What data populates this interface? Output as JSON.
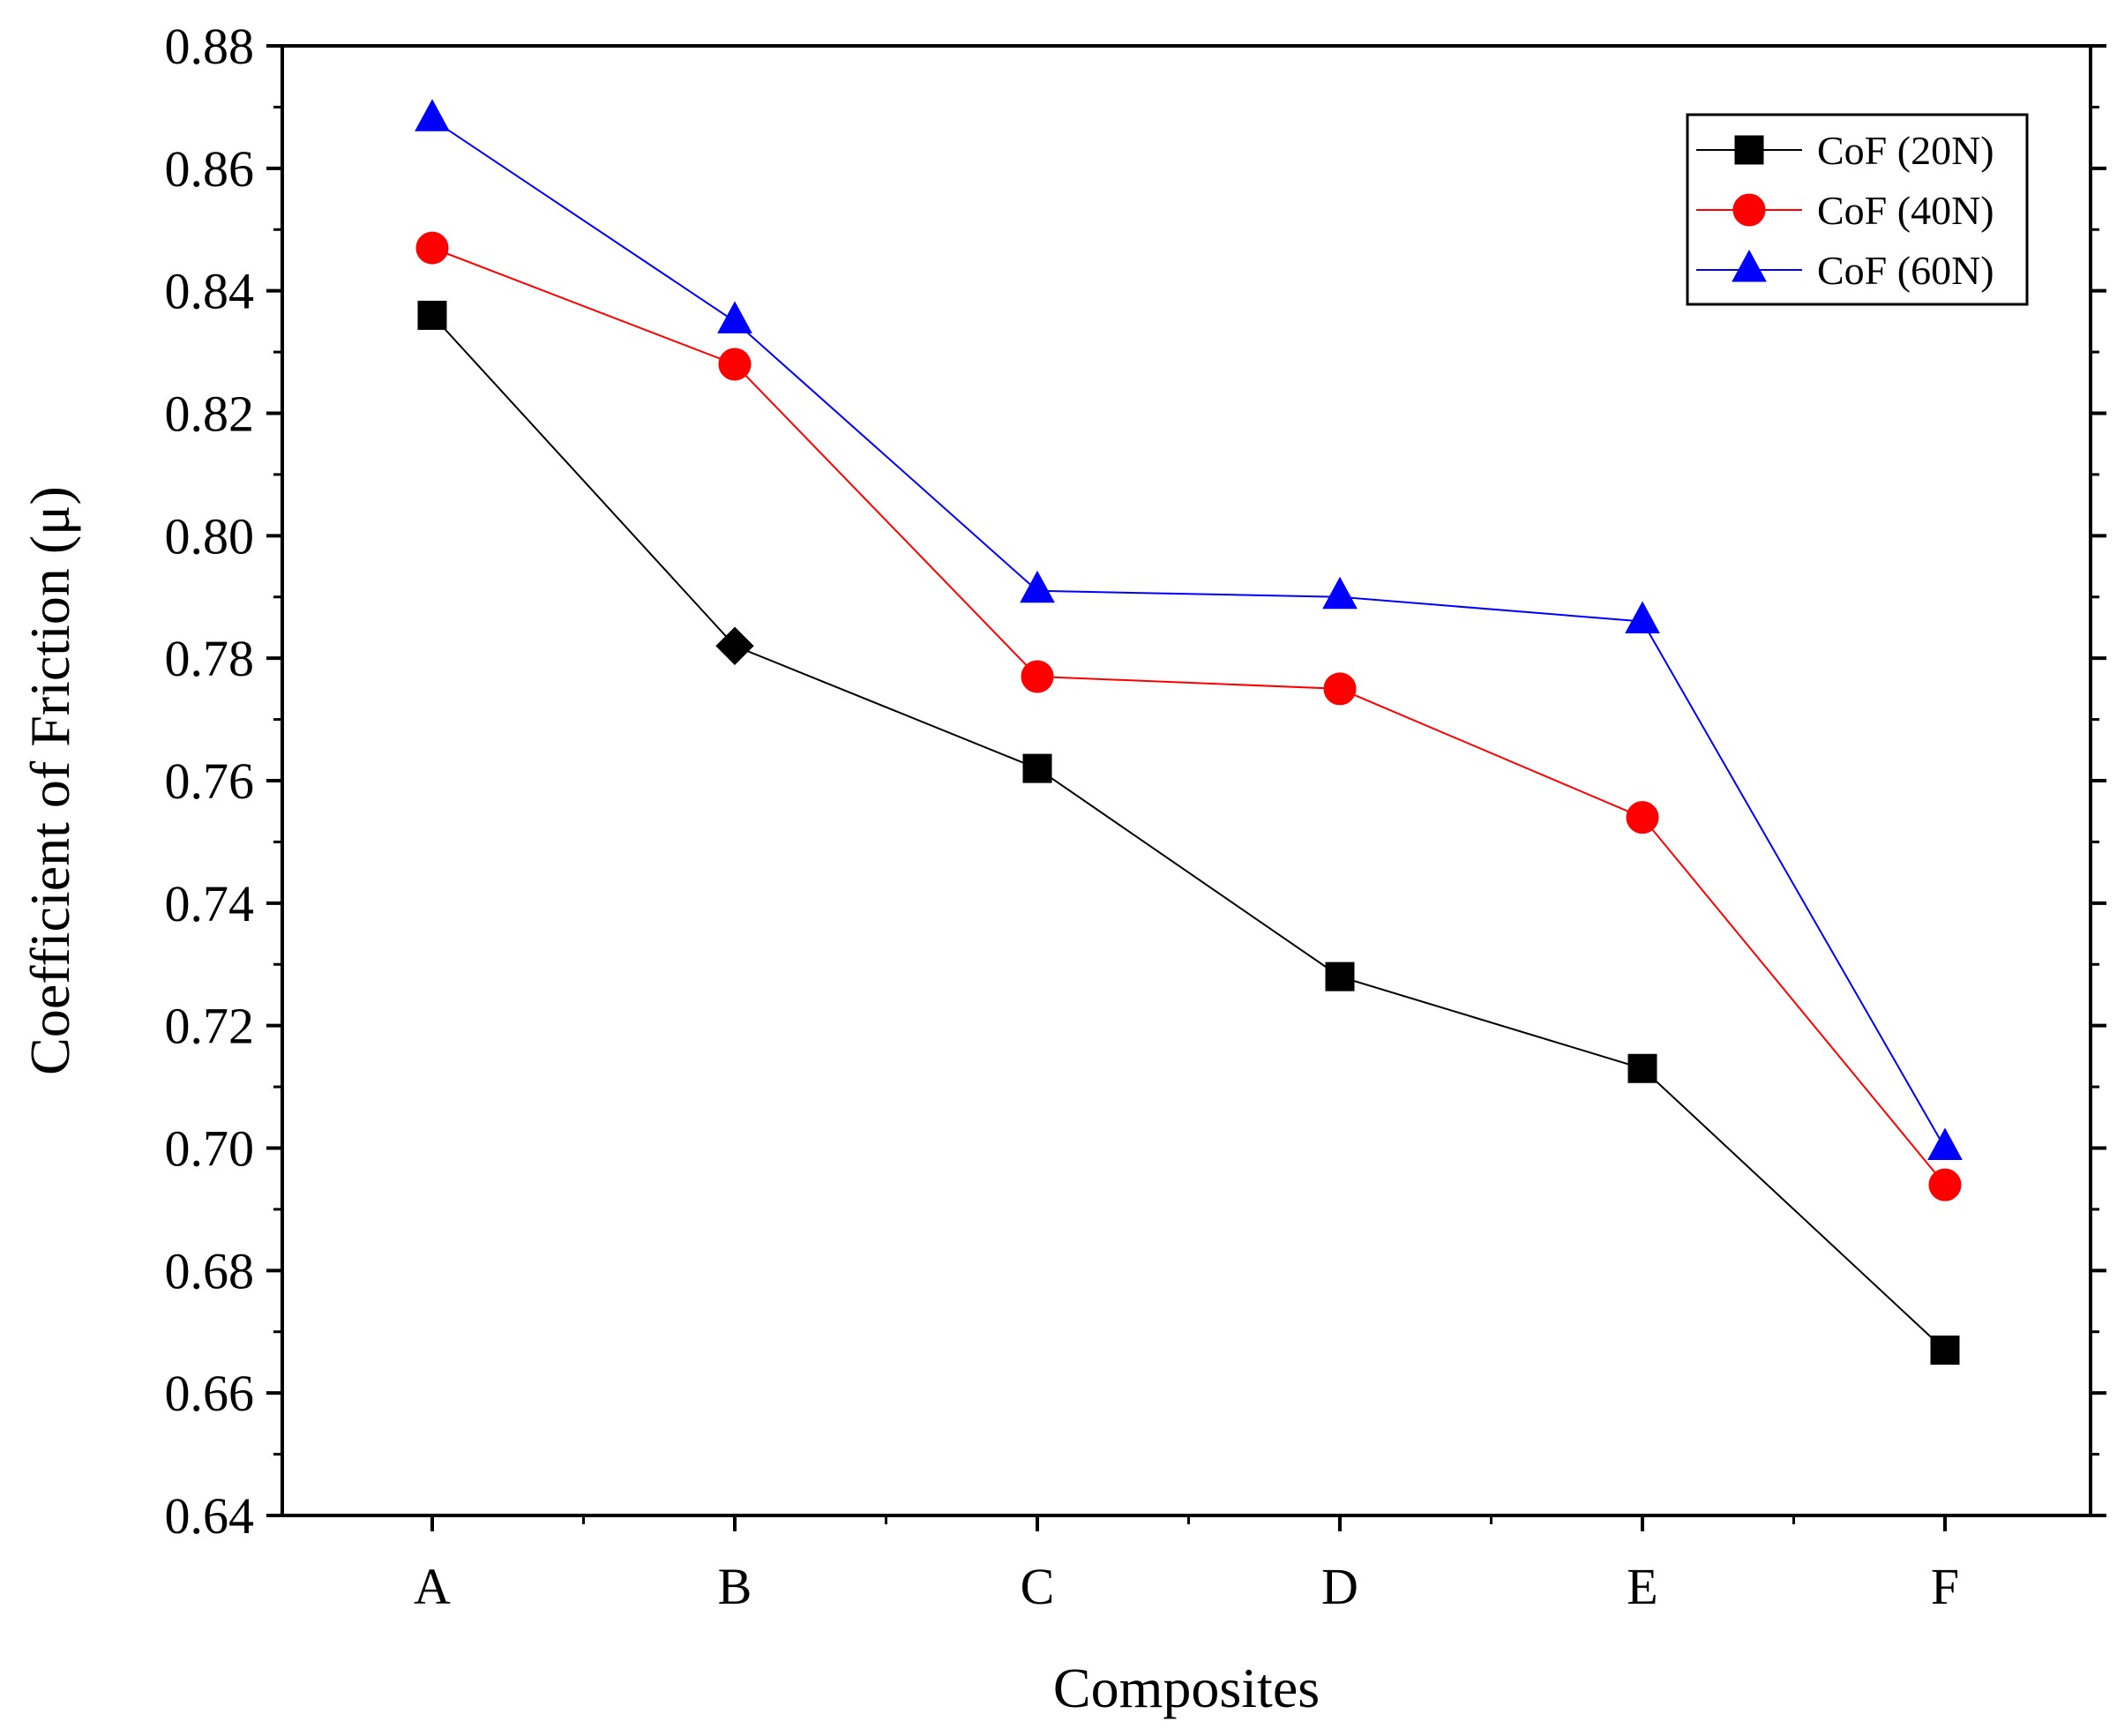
{
  "chart_data": {
    "type": "line",
    "title": "",
    "xlabel": "Composites",
    "ylabel": "Coefficient of Friction (μ)",
    "categories": [
      "A",
      "B",
      "C",
      "D",
      "E",
      "F"
    ],
    "ylim": [
      0.64,
      0.88
    ],
    "yticks": [
      "0.64",
      "0.66",
      "0.68",
      "0.70",
      "0.72",
      "0.74",
      "0.76",
      "0.78",
      "0.80",
      "0.82",
      "0.84",
      "0.86",
      "0.88"
    ],
    "grid": false,
    "legend_position": "top-right",
    "series": [
      {
        "name": "CoF (20N)",
        "values": [
          0.836,
          0.782,
          0.762,
          0.728,
          0.713,
          0.667
        ],
        "color": "#000000",
        "marker": "square"
      },
      {
        "name": "CoF (40N)",
        "values": [
          0.847,
          0.828,
          0.777,
          0.775,
          0.754,
          0.694
        ],
        "color": "#ff0000",
        "marker": "circle"
      },
      {
        "name": "CoF (60N)",
        "values": [
          0.868,
          0.835,
          0.791,
          0.79,
          0.786,
          0.7
        ],
        "color": "#0000ff",
        "marker": "triangle"
      }
    ]
  }
}
